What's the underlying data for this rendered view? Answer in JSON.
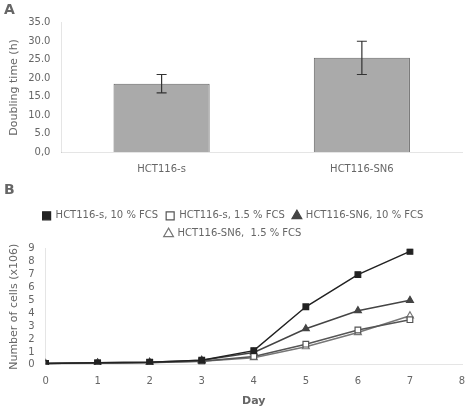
{
  "chart_data": [
    {
      "type": "bar",
      "title": "A",
      "categories": [
        "HCT116-s",
        "HCT116-SN6"
      ],
      "values": [
        18.5,
        25.5
      ],
      "errors": [
        2.5,
        4.5
      ],
      "color": "#aaaaaa",
      "ylabel": "Doubling time (h)",
      "ylim": [
        0,
        35
      ],
      "yticks": [
        {
          "value": 0,
          "label": "0,0"
        },
        {
          "value": 5.0,
          "label": "5.0"
        },
        {
          "value": 10.0,
          "label": "10.0"
        },
        {
          "value": 15.0,
          "label": "15.0"
        },
        {
          "value": 20.0,
          "label": "20.0"
        },
        {
          "value": 25.0,
          "label": "25.0"
        },
        {
          "value": 30.0,
          "label": "30.0"
        },
        {
          "value": 35.0,
          "label": "35.0"
        }
      ],
      "grid": false
    },
    {
      "type": "line",
      "title": "B",
      "xlabel": "Day",
      "ylabel": "Number of cells (x106)",
      "x": [
        0,
        1,
        2,
        3,
        4,
        5,
        6,
        7
      ],
      "series": [
        {
          "name": "HCT116-s, 10 % FCS",
          "color": "#222222",
          "marker": "square",
          "line_style": "solid",
          "values": [
            0.1,
            0.15,
            0.2,
            0.35,
            1.1,
            4.5,
            7.0,
            8.8
          ]
        },
        {
          "name": "HCT116-s, 1.5 % FCS",
          "color": "#555555",
          "marker": "square-open",
          "line_style": "solid",
          "values": [
            0.1,
            0.15,
            0.18,
            0.28,
            0.65,
            1.6,
            2.7,
            3.5
          ]
        },
        {
          "name": "HCT116-SN6, 10 % FCS",
          "color": "#444444",
          "marker": "triangle",
          "line_style": "solid",
          "values": [
            0.1,
            0.15,
            0.2,
            0.35,
            0.95,
            2.8,
            4.2,
            5.0
          ]
        },
        {
          "name": "HCT116-SN6,  1.5 % FCS",
          "color": "#777777",
          "marker": "triangle-open",
          "line_style": "solid",
          "values": [
            0.1,
            0.12,
            0.16,
            0.28,
            0.55,
            1.4,
            2.5,
            3.8
          ]
        }
      ],
      "xlim": [
        0,
        8
      ],
      "ylim": [
        0,
        9
      ],
      "xticks": [
        0,
        1,
        2,
        3,
        4,
        5,
        6,
        7,
        8
      ],
      "yticks": [
        0,
        1,
        2,
        3,
        4,
        5,
        6,
        7,
        8,
        9
      ],
      "grid": false,
      "legend": "top"
    }
  ]
}
